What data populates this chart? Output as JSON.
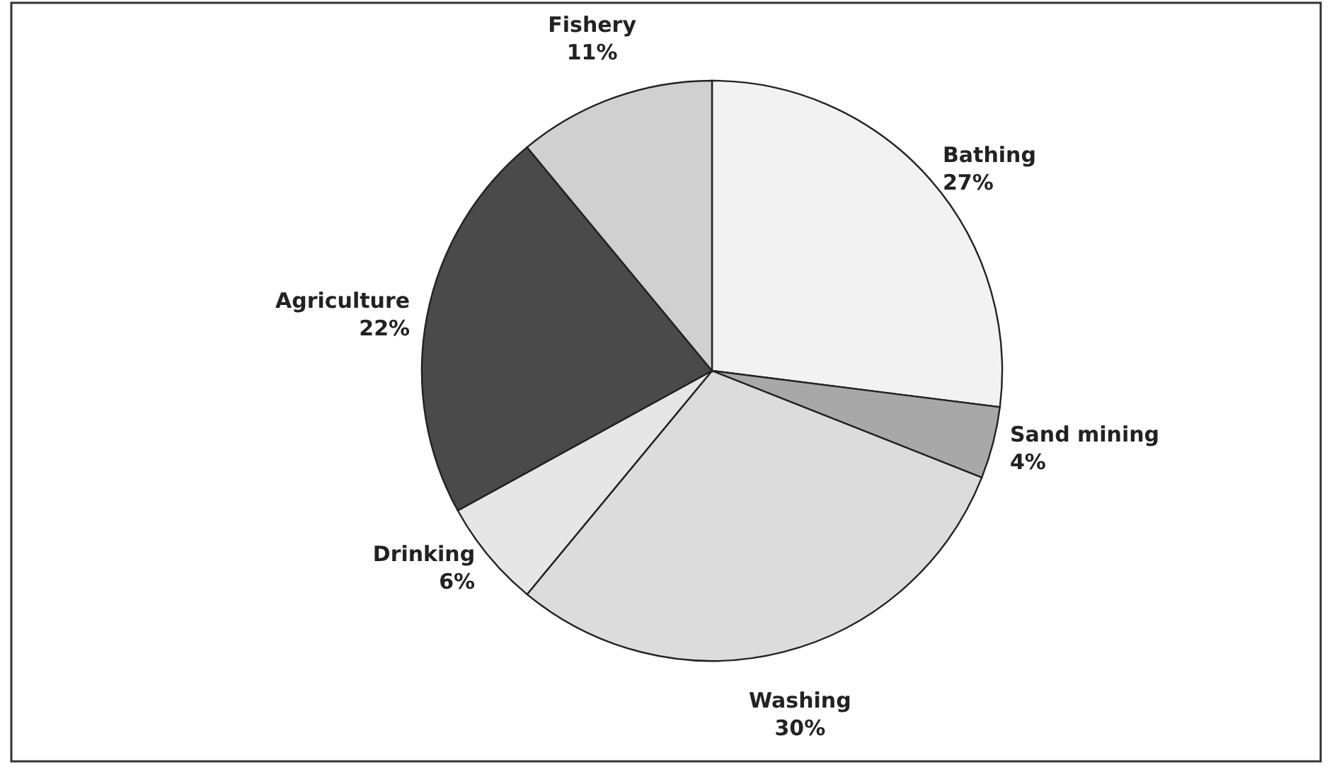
{
  "chart_data": {
    "type": "pie",
    "categories": [
      "Bathing",
      "Sand mining",
      "Washing",
      "Drinking",
      "Agriculture",
      "Fishery"
    ],
    "values": [
      27,
      4,
      30,
      6,
      22,
      11
    ],
    "value_labels": [
      "27%",
      "4%",
      "30%",
      "6%",
      "22%",
      "11%"
    ],
    "colors": [
      "#f2f2f2",
      "#a8a8a8",
      "#dcdcdc",
      "#e6e6e6",
      "#4a4a4a",
      "#d0d0d0"
    ]
  }
}
